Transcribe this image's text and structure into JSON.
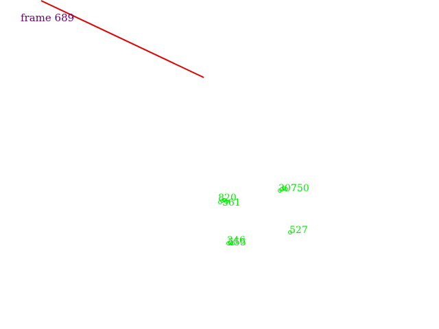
{
  "frame": {
    "label": "frame 689"
  },
  "colors": {
    "frame_label": "#660066",
    "track_line": "#e00000",
    "points": "#00ee00",
    "background": "#ffffff"
  },
  "point_clusters": [
    {
      "labels": [
        "307",
        "750"
      ]
    },
    {
      "labels": [
        "820",
        "561"
      ]
    },
    {
      "labels": [
        "527"
      ]
    },
    {
      "labels": [
        "346",
        "555"
      ]
    }
  ]
}
